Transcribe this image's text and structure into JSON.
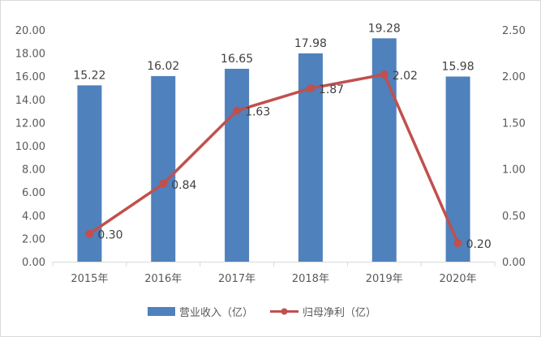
{
  "chart_data": {
    "type": "bar+line",
    "categories": [
      "2015年",
      "2016年",
      "2017年",
      "2018年",
      "2019年",
      "2020年"
    ],
    "series": [
      {
        "name": "营业收入（亿）",
        "type": "bar",
        "axis": "left",
        "color": "#4f81bd",
        "values": [
          15.22,
          16.02,
          16.65,
          17.98,
          19.28,
          15.98
        ],
        "labels": [
          "15.22",
          "16.02",
          "16.65",
          "17.98",
          "19.28",
          "15.98"
        ]
      },
      {
        "name": "归母净利（亿）",
        "type": "line",
        "axis": "right",
        "color": "#c0504d",
        "values": [
          0.3,
          0.84,
          1.63,
          1.87,
          2.02,
          0.2
        ],
        "labels": [
          "0.30",
          "0.84",
          "1.63",
          "1.87",
          "2.02",
          "0.20"
        ]
      }
    ],
    "y_left": {
      "ylim": [
        0,
        20
      ],
      "ticks": [
        "0.00",
        "2.00",
        "4.00",
        "6.00",
        "8.00",
        "10.00",
        "12.00",
        "14.00",
        "16.00",
        "18.00",
        "20.00"
      ]
    },
    "y_right": {
      "ylim": [
        0,
        2.5
      ],
      "ticks": [
        "0.00",
        "0.50",
        "1.00",
        "1.50",
        "2.00",
        "2.50"
      ]
    },
    "grid": false,
    "legend": "bottom"
  }
}
